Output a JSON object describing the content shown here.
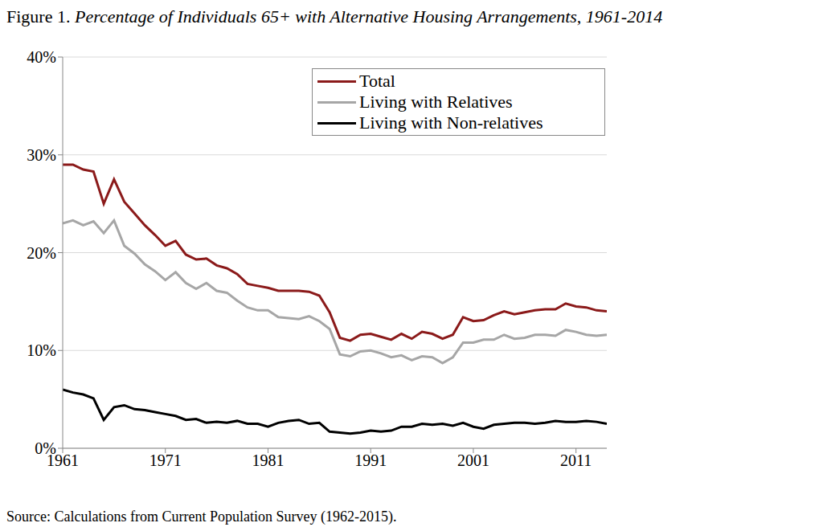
{
  "chart_data": {
    "type": "line",
    "title": "Figure 1. Percentage of Individuals 65+ with Alternative Housing Arrangements, 1961-2014",
    "source": "Source: Calculations from Current Population Survey (1962-2015).",
    "x": [
      1961,
      1962,
      1963,
      1964,
      1965,
      1966,
      1967,
      1968,
      1969,
      1970,
      1971,
      1972,
      1973,
      1974,
      1975,
      1976,
      1977,
      1978,
      1979,
      1980,
      1981,
      1982,
      1983,
      1984,
      1985,
      1986,
      1987,
      1988,
      1989,
      1990,
      1991,
      1992,
      1993,
      1994,
      1995,
      1996,
      1997,
      1998,
      1999,
      2000,
      2001,
      2002,
      2003,
      2004,
      2005,
      2006,
      2007,
      2008,
      2009,
      2010,
      2011,
      2012,
      2013,
      2014
    ],
    "series": [
      {
        "name": "Total",
        "color": "#8b1a1a",
        "values": [
          29,
          29,
          28.5,
          28.3,
          25,
          27.5,
          25.2,
          24,
          22.8,
          21.8,
          20.7,
          21.2,
          19.8,
          19.3,
          19.4,
          18.7,
          18.4,
          17.8,
          16.8,
          16.6,
          16.4,
          16.1,
          16.1,
          16.1,
          16.0,
          15.6,
          13.9,
          11.3,
          11.0,
          11.6,
          11.7,
          11.4,
          11.1,
          11.7,
          11.2,
          11.9,
          11.7,
          11.2,
          11.6,
          13.4,
          13.0,
          13.1,
          13.6,
          14.0,
          13.7,
          13.9,
          14.1,
          14.2,
          14.2,
          14.8,
          14.5,
          14.4,
          14.1,
          14.0
        ]
      },
      {
        "name": "Living with Relatives",
        "color": "#a6a6a6",
        "values": [
          23.0,
          23.3,
          22.8,
          23.2,
          22.0,
          23.3,
          20.7,
          19.9,
          18.8,
          18.1,
          17.2,
          18.0,
          16.9,
          16.3,
          16.9,
          16.1,
          15.9,
          15.1,
          14.4,
          14.1,
          14.1,
          13.4,
          13.3,
          13.2,
          13.5,
          13.0,
          12.2,
          9.6,
          9.4,
          9.9,
          10.0,
          9.7,
          9.3,
          9.5,
          9.0,
          9.4,
          9.3,
          8.7,
          9.3,
          10.8,
          10.8,
          11.1,
          11.1,
          11.6,
          11.2,
          11.3,
          11.6,
          11.6,
          11.5,
          12.1,
          11.9,
          11.6,
          11.5,
          11.6
        ]
      },
      {
        "name": "Living with Non-relatives",
        "color": "#000000",
        "values": [
          6.0,
          5.7,
          5.5,
          5.1,
          2.9,
          4.2,
          4.4,
          4.0,
          3.9,
          3.7,
          3.5,
          3.3,
          2.9,
          3.0,
          2.6,
          2.7,
          2.6,
          2.8,
          2.5,
          2.5,
          2.2,
          2.6,
          2.8,
          2.9,
          2.5,
          2.6,
          1.7,
          1.6,
          1.5,
          1.6,
          1.8,
          1.7,
          1.8,
          2.2,
          2.2,
          2.5,
          2.4,
          2.5,
          2.3,
          2.6,
          2.2,
          2.0,
          2.4,
          2.5,
          2.6,
          2.6,
          2.5,
          2.6,
          2.8,
          2.7,
          2.7,
          2.8,
          2.7,
          2.5
        ]
      }
    ],
    "xlim": [
      1961,
      2014
    ],
    "xticks": [
      1961,
      1971,
      1981,
      1991,
      2001,
      2011
    ],
    "ylim": [
      0,
      40
    ],
    "yticks": [
      {
        "value": 0,
        "label": "0%"
      },
      {
        "value": 10,
        "label": "10%"
      },
      {
        "value": 20,
        "label": "20%"
      },
      {
        "value": 30,
        "label": "30%"
      },
      {
        "value": 40,
        "label": "40%"
      }
    ],
    "grid": true,
    "legend": "top-right"
  }
}
